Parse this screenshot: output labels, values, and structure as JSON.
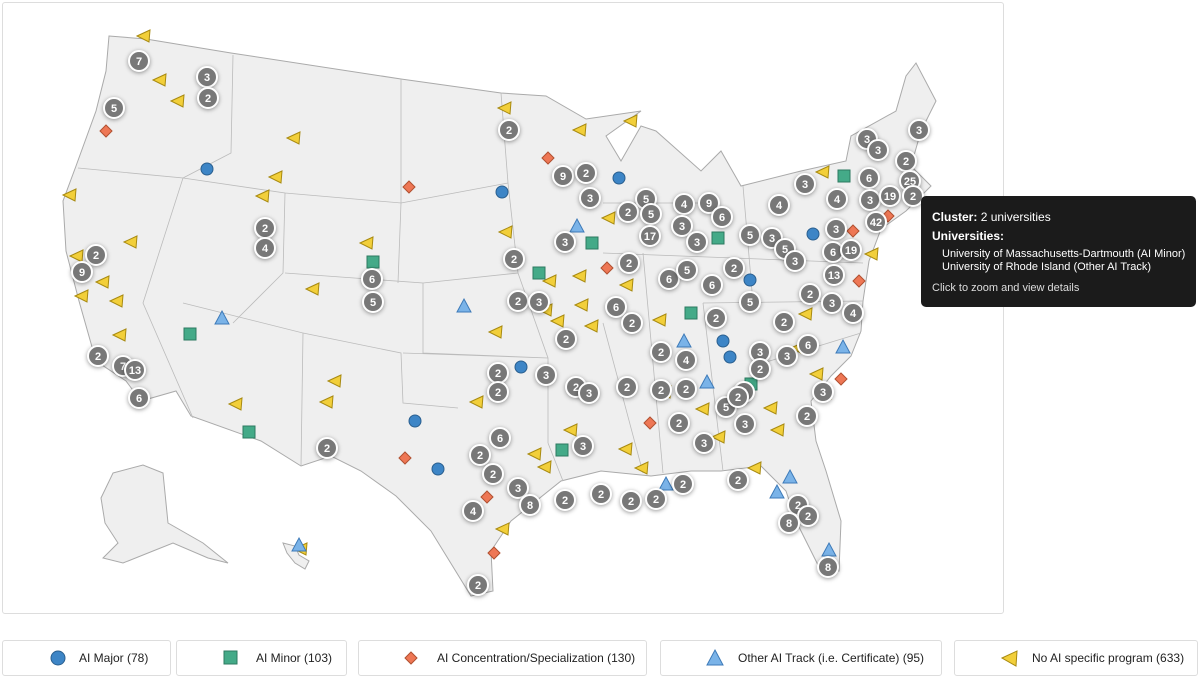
{
  "tooltip": {
    "cluster_label": "Cluster:",
    "cluster_value": "2 universities",
    "universities_label": "Universities:",
    "universities": [
      "University of Massachusetts-Dartmouth (AI Minor)",
      "University of Rhode Island (Other AI Track)"
    ],
    "hint": "Click to zoom and view details"
  },
  "legend": [
    {
      "label": "AI Major (78)"
    },
    {
      "label": "AI Minor (103)"
    },
    {
      "label": "AI Concentration/Specialization (130)"
    },
    {
      "label": "Other AI Track (i.e. Certificate) (95)"
    },
    {
      "label": "No AI specific program (633)"
    }
  ],
  "clusters": [
    7,
    3,
    2,
    5,
    2,
    3,
    3,
    3,
    2,
    9,
    2,
    3,
    6,
    25,
    5,
    2,
    5,
    4,
    9,
    6,
    3,
    4,
    4,
    3,
    19,
    2,
    42,
    17,
    3,
    3,
    5,
    3,
    5,
    3,
    3,
    6,
    19,
    13,
    2,
    4,
    2,
    9,
    3,
    2,
    6,
    5,
    2,
    6,
    5,
    6,
    2,
    2,
    3,
    6,
    2,
    2,
    5,
    2,
    2,
    3,
    4,
    2,
    2,
    4,
    3,
    2,
    3,
    6,
    2,
    7,
    13,
    6,
    2,
    2,
    3,
    2,
    3,
    2,
    2,
    2,
    2,
    5,
    2,
    3,
    2,
    3,
    2,
    3,
    2,
    6,
    2,
    3,
    2,
    3,
    8,
    2,
    2,
    2,
    2,
    4,
    2,
    2,
    2,
    2,
    8,
    8,
    2
  ]
}
